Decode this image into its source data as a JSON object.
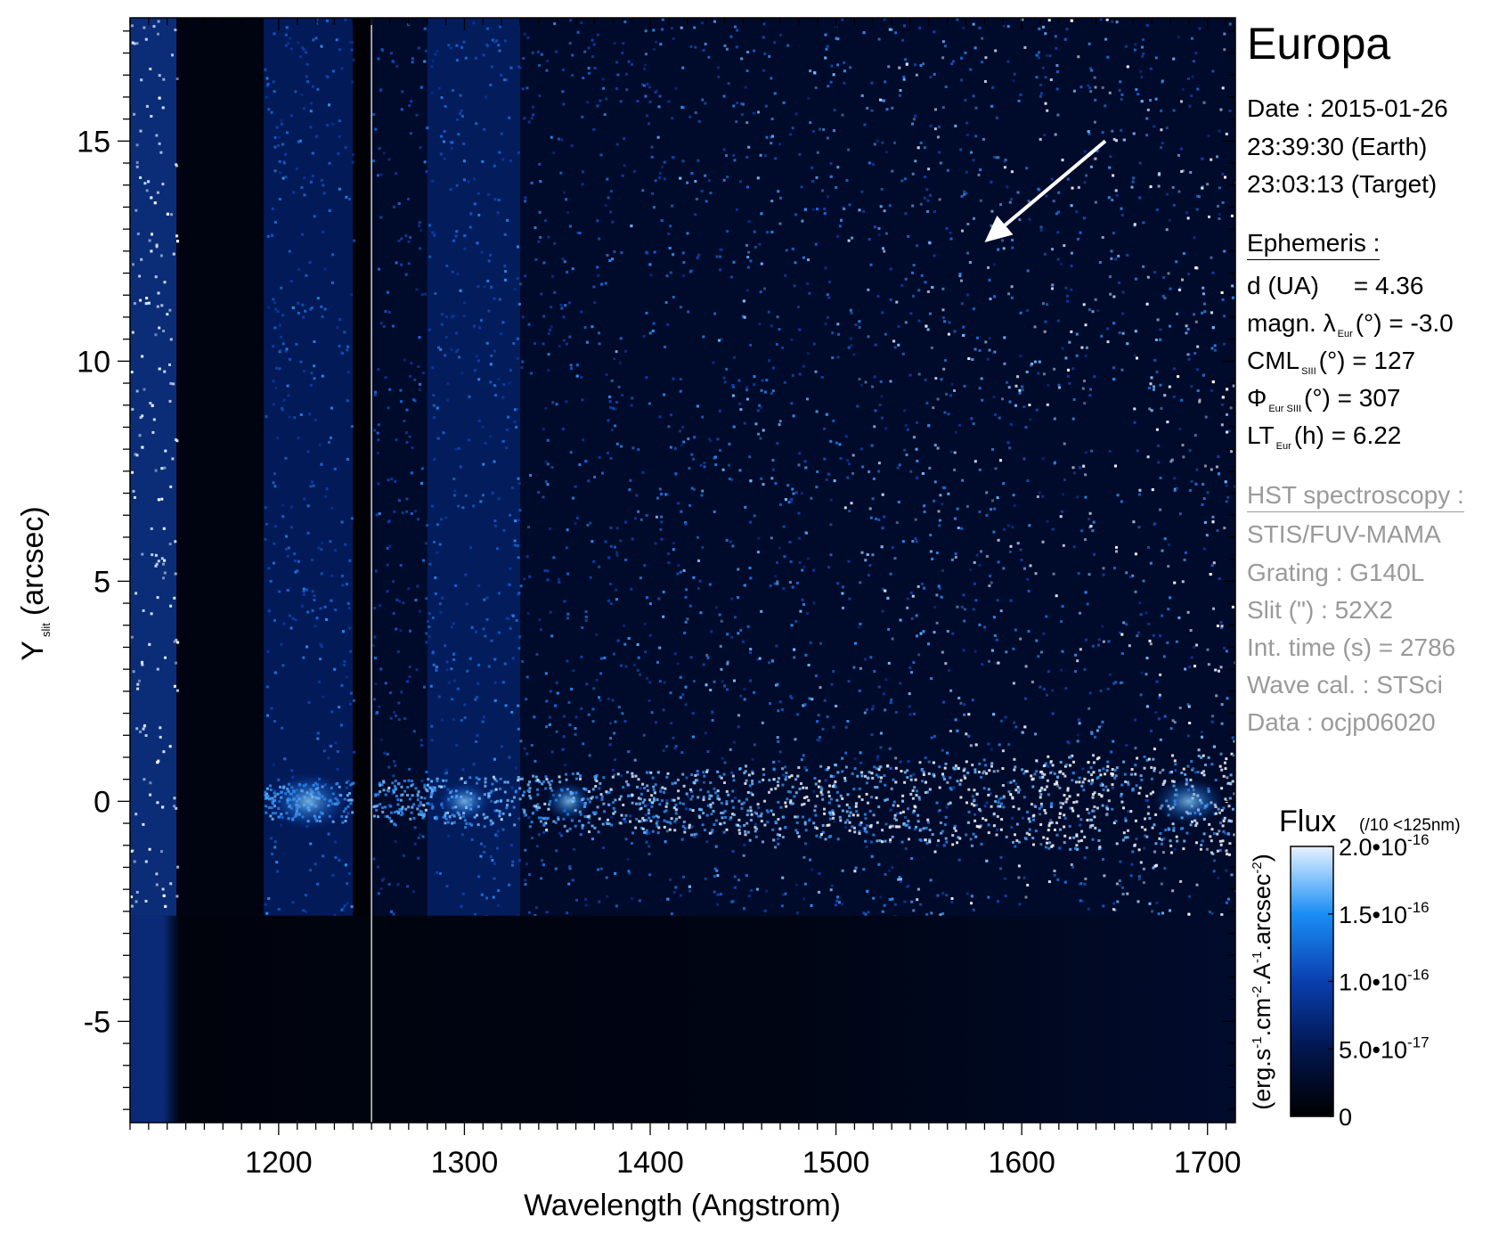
{
  "chart_data": {
    "type": "heatmap",
    "xlabel": "Wavelength (Angstrom)",
    "ylabel_main": "Y",
    "ylabel_sub": "slit",
    "ylabel_unit": "(arcsec)",
    "xlim": [
      1120,
      1715
    ],
    "ylim": [
      -7.3,
      17.8
    ],
    "xticks": [
      1200,
      1300,
      1400,
      1500,
      1600,
      1700
    ],
    "yticks": [
      -5,
      0,
      5,
      10,
      15
    ],
    "colorbar": {
      "title": "Flux",
      "note": "(/10 <125nm)",
      "unit_label": "(erg.s-1.cm-2.A-1.arcsec-2)",
      "range": [
        0,
        2e-16
      ],
      "ticks": [
        {
          "value": 0,
          "label_main": "0",
          "label_exp": ""
        },
        {
          "value": 5e-17,
          "label_main": "5.0•10",
          "label_exp": "-17"
        },
        {
          "value": 1e-16,
          "label_main": "1.0•10",
          "label_exp": "-16"
        },
        {
          "value": 1.5e-16,
          "label_main": "1.5•10",
          "label_exp": "-16"
        },
        {
          "value": 2e-16,
          "label_main": "2.0•10",
          "label_exp": "-16"
        }
      ],
      "colors": [
        "#000000",
        "#02164f",
        "#0a3fb0",
        "#1a8ef5",
        "#d8ecff"
      ]
    },
    "features": {
      "slit_bottom_y": -2.6,
      "emission_row_y": 0,
      "bright_band_x": [
        1120,
        1145
      ],
      "dark_band_x": [
        1145,
        1192
      ],
      "lyman_alpha_x": [
        1192,
        1240
      ],
      "gap_x": [
        1240,
        1250
      ],
      "oxygen_band_x": [
        1280,
        1330
      ],
      "arrow_from": [
        1645,
        15.0
      ],
      "arrow_to": [
        1580,
        12.7
      ]
    }
  },
  "panel": {
    "target": "Europa",
    "date_line": "Date : 2015-01-26",
    "earth_time": "23:39:30 (Earth)",
    "target_time": "23:03:13 (Target)",
    "ephemeris_title": "Ephemeris :",
    "dist_label": "d (UA)",
    "dist_value": "= 4.36",
    "lat_pre": "magn. λ",
    "lat_sub": "Eur",
    "lat_post": "(°)  = -3.0",
    "cml_pre": "CML",
    "cml_sub": "SIII",
    "cml_post": "(°) = 127",
    "phi_pre": "Φ",
    "phi_sub": "Eur SIII",
    "phi_post": "(°) = 307",
    "lt_pre": "LT",
    "lt_sub": "Eur",
    "lt_post": "(h) = 6.22",
    "hst_title": "HST spectroscopy :",
    "instrument": "STIS/FUV-MAMA",
    "grating": "Grating : G140L",
    "slit": "Slit (\") : 52X2",
    "int_time": "Int. time (s) = 2786",
    "wave_cal": "Wave cal. : STSci",
    "data_id": "Data : ocjp06020"
  }
}
